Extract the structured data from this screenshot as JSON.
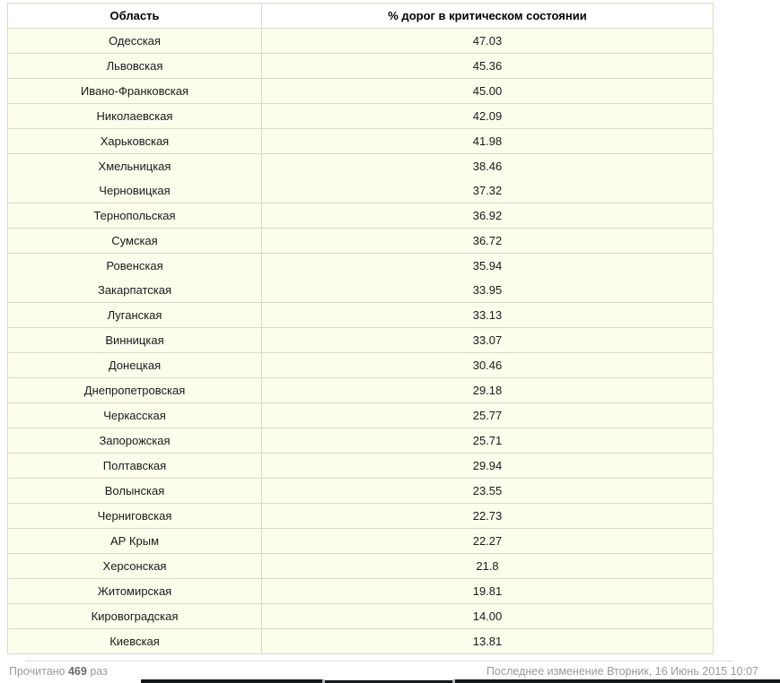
{
  "table": {
    "headers": {
      "region": "Область",
      "value": "% дорог в критическом состоянии"
    },
    "rows": [
      {
        "region": "Одесская",
        "value": "47.03"
      },
      {
        "region": "Львовская",
        "value": "45.36"
      },
      {
        "region": "Ивано-Франковская",
        "value": "45.00"
      },
      {
        "region": "Николаевская",
        "value": "42.09"
      },
      {
        "region": "Харьковская",
        "value": "41.98"
      },
      {
        "region": "Хмельницкая",
        "value": "38.46"
      },
      {
        "region": "Черновицкая",
        "value": "37.32"
      },
      {
        "region": "Тернопольская",
        "value": "36.92"
      },
      {
        "region": "Сумская",
        "value": "36.72"
      },
      {
        "region": "Ровенская",
        "value": "35.94"
      },
      {
        "region": "Закарпатская",
        "value": "33.95"
      },
      {
        "region": "Луганская",
        "value": "33.13"
      },
      {
        "region": "Винницкая",
        "value": "33.07"
      },
      {
        "region": "Донецкая",
        "value": "30.46"
      },
      {
        "region": "Днепропетровская",
        "value": "29.18"
      },
      {
        "region": "Черкасская",
        "value": "25.77"
      },
      {
        "region": "Запорожская",
        "value": "25.71"
      },
      {
        "region": "Полтавская",
        "value": "29.94"
      },
      {
        "region": "Волынская",
        "value": "23.55"
      },
      {
        "region": "Черниговская",
        "value": "22.73"
      },
      {
        "region": "АР Крым",
        "value": "22.27"
      },
      {
        "region": "Херсонская",
        "value": "21.8"
      },
      {
        "region": "Житомирская",
        "value": "19.81"
      },
      {
        "region": "Кировоградская",
        "value": "14.00"
      },
      {
        "region": "Киевская",
        "value": "13.81"
      }
    ]
  },
  "footer": {
    "read_label": "Прочитано",
    "read_count": "469",
    "read_suffix": "раз",
    "last_modified": "Последнее изменение Вторник, 16 Июнь 2015 10:07"
  },
  "colors": {
    "row_background": "#FDFDEB",
    "inner_border": "#D9D9CB",
    "outer_border": "#C3C3BD",
    "footer_text": "#9A9A9A",
    "bottom_bar": "#17171E"
  }
}
